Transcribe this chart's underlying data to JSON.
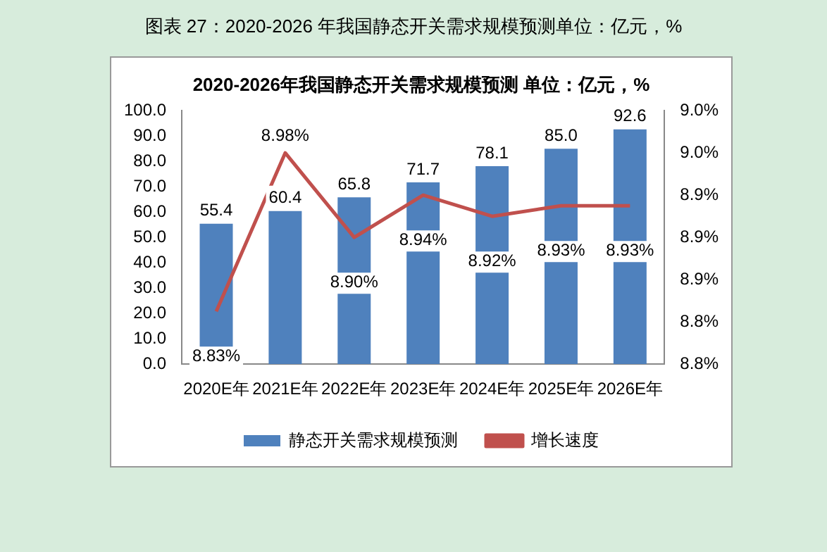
{
  "chart_data": {
    "type": "bar",
    "title": "2020-2026年我国静态开关需求规模预测 单位：亿元，%",
    "annotations": [
      "图表 27：2020-2026 年我国静态开关需求规模预测单位：亿元，%"
    ],
    "categories": [
      "2020E年",
      "2021E年",
      "2022E年",
      "2023E年",
      "2024E年",
      "2025E年",
      "2026E年"
    ],
    "series": [
      {
        "name": "静态开关需求规模预测",
        "color": "#4f81bd",
        "values": [
          55.4,
          60.4,
          65.8,
          71.7,
          78.1,
          85.0,
          92.6
        ],
        "value_labels": [
          "55.4",
          "60.4",
          "65.8",
          "71.7",
          "78.1",
          "85.0",
          "92.6"
        ]
      },
      {
        "name": "增长速度",
        "type": "line",
        "axis": "y2",
        "color": "#c0504d",
        "values": [
          8.83,
          8.98,
          8.9,
          8.94,
          8.92,
          8.93,
          8.93
        ],
        "value_labels": [
          "8.83%",
          "8.98%",
          "8.90%",
          "8.94%",
          "8.92%",
          "8.93%",
          "8.93%"
        ]
      }
    ],
    "ylim": [
      0,
      100
    ],
    "yticks": [
      {
        "value": 0,
        "label": "0.0"
      },
      {
        "value": 10,
        "label": "10.0"
      },
      {
        "value": 20,
        "label": "20.0"
      },
      {
        "value": 30,
        "label": "30.0"
      },
      {
        "value": 40,
        "label": "40.0"
      },
      {
        "value": 50,
        "label": "50.0"
      },
      {
        "value": 60,
        "label": "60.0"
      },
      {
        "value": 70,
        "label": "70.0"
      },
      {
        "value": 80,
        "label": "80.0"
      },
      {
        "value": 90,
        "label": "90.0"
      },
      {
        "value": 100,
        "label": "100.0"
      }
    ],
    "y2lim": [
      8.78,
      9.02
    ],
    "y2ticks": [
      {
        "value": 8.78,
        "label": "8.8%"
      },
      {
        "value": 8.82,
        "label": "8.8%"
      },
      {
        "value": 8.86,
        "label": "8.9%"
      },
      {
        "value": 8.9,
        "label": "8.9%"
      },
      {
        "value": 8.94,
        "label": "8.9%"
      },
      {
        "value": 8.98,
        "label": "9.0%"
      },
      {
        "value": 9.02,
        "label": "9.0%"
      }
    ],
    "marker": "none",
    "line_style": "solid",
    "grid": false,
    "legend": "bottom"
  }
}
